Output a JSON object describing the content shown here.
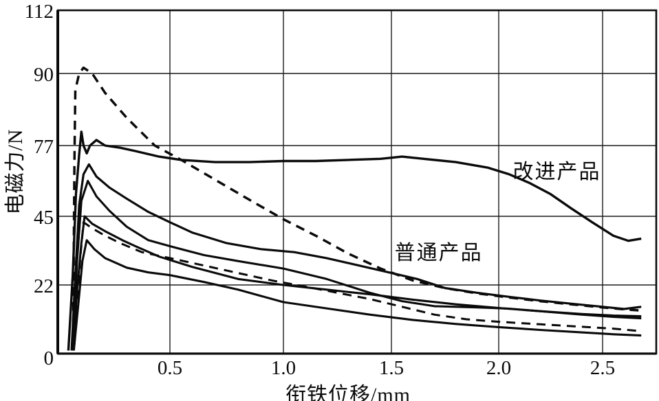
{
  "figure": {
    "background": "#ffffff",
    "ink_color": "#0a0a0a",
    "grid_color": "#1a1a1a"
  },
  "chart_data": {
    "type": "line",
    "title": "",
    "xlabel": "衔铁位移/mm",
    "ylabel": "电磁力/N",
    "xlim": [
      0,
      2.75
    ],
    "ylim": [
      0,
      112
    ],
    "grid": true,
    "legend_position": "none",
    "x_tick_labels": [
      "0.5",
      "1.0",
      "1.5",
      "2.0",
      "2.5"
    ],
    "x_tick_values": [
      0.5,
      1.0,
      1.5,
      2.0,
      2.5
    ],
    "y_tick_labels": [
      "0",
      "22",
      "45",
      "77",
      "90",
      "112"
    ],
    "y_tick_values": [
      0,
      22,
      45,
      77,
      90,
      112
    ],
    "annotations": [
      {
        "text": "改进产品",
        "x": 2.28,
        "y": 66
      },
      {
        "text": "普通产品",
        "x": 1.72,
        "y": 33.5
      }
    ],
    "series": [
      {
        "name": "改进产品",
        "style": "solid",
        "width": 3.4,
        "points": [
          [
            0.03,
            1
          ],
          [
            0.05,
            25
          ],
          [
            0.065,
            55
          ],
          [
            0.08,
            73
          ],
          [
            0.09,
            79.5
          ],
          [
            0.1,
            77
          ],
          [
            0.115,
            73.5
          ],
          [
            0.13,
            77
          ],
          [
            0.16,
            78
          ],
          [
            0.2,
            77
          ],
          [
            0.27,
            76
          ],
          [
            0.34,
            74.5
          ],
          [
            0.45,
            72
          ],
          [
            0.55,
            70.5
          ],
          [
            0.7,
            69.5
          ],
          [
            0.85,
            69.5
          ],
          [
            1.0,
            70
          ],
          [
            1.15,
            70
          ],
          [
            1.3,
            70.5
          ],
          [
            1.45,
            71
          ],
          [
            1.55,
            72
          ],
          [
            1.65,
            71
          ],
          [
            1.8,
            69.5
          ],
          [
            1.95,
            67
          ],
          [
            2.05,
            64
          ],
          [
            2.15,
            60
          ],
          [
            2.25,
            55
          ],
          [
            2.35,
            48.5
          ],
          [
            2.45,
            43
          ],
          [
            2.55,
            38.5
          ],
          [
            2.62,
            36.8
          ],
          [
            2.68,
            37.5
          ]
        ]
      },
      {
        "name": "普通产品 虚线1",
        "style": "dashed",
        "width": 3.5,
        "points": [
          [
            0.052,
            4
          ],
          [
            0.055,
            35
          ],
          [
            0.058,
            70
          ],
          [
            0.062,
            87
          ],
          [
            0.08,
            90
          ],
          [
            0.1,
            92
          ],
          [
            0.14,
            90
          ],
          [
            0.2,
            86.5
          ],
          [
            0.3,
            82
          ],
          [
            0.43,
            77
          ],
          [
            0.55,
            70.5
          ],
          [
            0.7,
            61.5
          ],
          [
            0.85,
            52.5
          ],
          [
            1.0,
            44
          ],
          [
            1.15,
            38.5
          ],
          [
            1.3,
            32.5
          ],
          [
            1.45,
            27.5
          ],
          [
            1.6,
            23.5
          ],
          [
            1.75,
            21
          ],
          [
            1.9,
            19.3
          ],
          [
            2.05,
            18
          ],
          [
            2.2,
            16.8
          ],
          [
            2.35,
            15.8
          ],
          [
            2.5,
            14.8
          ],
          [
            2.6,
            14.2
          ],
          [
            2.68,
            13.8
          ]
        ]
      },
      {
        "name": "普通产品 实线1",
        "style": "solid",
        "width": 3.2,
        "points": [
          [
            0.045,
            1
          ],
          [
            0.06,
            22
          ],
          [
            0.08,
            50
          ],
          [
            0.1,
            64
          ],
          [
            0.125,
            68.5
          ],
          [
            0.16,
            63
          ],
          [
            0.22,
            58
          ],
          [
            0.3,
            53
          ],
          [
            0.4,
            47
          ],
          [
            0.5,
            43
          ],
          [
            0.6,
            39.5
          ],
          [
            0.75,
            36
          ],
          [
            0.9,
            34
          ],
          [
            1.05,
            33
          ],
          [
            1.2,
            31
          ],
          [
            1.35,
            28.5
          ],
          [
            1.5,
            26
          ],
          [
            1.62,
            24
          ],
          [
            1.75,
            21
          ],
          [
            1.9,
            19.5
          ],
          [
            2.05,
            18.2
          ],
          [
            2.2,
            17
          ],
          [
            2.35,
            16
          ],
          [
            2.5,
            15
          ],
          [
            2.6,
            14.3
          ],
          [
            2.68,
            15
          ]
        ]
      },
      {
        "name": "普通产品 实线2",
        "style": "solid",
        "width": 3.1,
        "points": [
          [
            0.05,
            1
          ],
          [
            0.07,
            30
          ],
          [
            0.09,
            52
          ],
          [
            0.12,
            61
          ],
          [
            0.16,
            54
          ],
          [
            0.22,
            47.5
          ],
          [
            0.3,
            41.5
          ],
          [
            0.4,
            37
          ],
          [
            0.5,
            35
          ],
          [
            0.65,
            32
          ],
          [
            0.8,
            30
          ],
          [
            1.0,
            27.5
          ],
          [
            1.2,
            24
          ],
          [
            1.4,
            19.5
          ],
          [
            1.55,
            16.8
          ],
          [
            1.7,
            15.2
          ],
          [
            1.9,
            14.8
          ],
          [
            2.05,
            14.4
          ],
          [
            2.2,
            13.6
          ],
          [
            2.4,
            12.5
          ],
          [
            2.55,
            11.8
          ],
          [
            2.68,
            11.3
          ]
        ]
      },
      {
        "name": "普通产品 实线3",
        "style": "solid",
        "width": 3.1,
        "points": [
          [
            0.05,
            1
          ],
          [
            0.07,
            20
          ],
          [
            0.09,
            36
          ],
          [
            0.105,
            45
          ],
          [
            0.14,
            42.5
          ],
          [
            0.2,
            40
          ],
          [
            0.28,
            37
          ],
          [
            0.34,
            35
          ],
          [
            0.45,
            31.5
          ],
          [
            0.6,
            28
          ],
          [
            0.8,
            24
          ],
          [
            1.0,
            22
          ],
          [
            1.2,
            20.5
          ],
          [
            1.4,
            19
          ],
          [
            1.6,
            17.3
          ],
          [
            1.8,
            15.8
          ],
          [
            2.0,
            14.6
          ],
          [
            2.2,
            13.6
          ],
          [
            2.4,
            12.7
          ],
          [
            2.55,
            12.2
          ],
          [
            2.68,
            12
          ]
        ]
      },
      {
        "name": "普通产品 虚线2",
        "style": "dashed",
        "width": 3.0,
        "points": [
          [
            0.058,
            3
          ],
          [
            0.07,
            14
          ],
          [
            0.085,
            31
          ],
          [
            0.1,
            43
          ],
          [
            0.14,
            41
          ],
          [
            0.2,
            38.5
          ],
          [
            0.27,
            36
          ],
          [
            0.37,
            33
          ],
          [
            0.5,
            31
          ],
          [
            0.65,
            28.5
          ],
          [
            0.8,
            26
          ],
          [
            0.95,
            23.5
          ],
          [
            1.1,
            21.5
          ],
          [
            1.25,
            19.5
          ],
          [
            1.4,
            17.5
          ],
          [
            1.55,
            15
          ],
          [
            1.7,
            12.5
          ],
          [
            1.85,
            11
          ],
          [
            2.0,
            10.2
          ],
          [
            2.2,
            9.4
          ],
          [
            2.4,
            8.6
          ],
          [
            2.55,
            8
          ],
          [
            2.68,
            7.2
          ]
        ]
      },
      {
        "name": "普通产品 实线4",
        "style": "solid",
        "width": 3.1,
        "points": [
          [
            0.055,
            1
          ],
          [
            0.075,
            15
          ],
          [
            0.095,
            30
          ],
          [
            0.115,
            37
          ],
          [
            0.15,
            34
          ],
          [
            0.2,
            31
          ],
          [
            0.3,
            27.8
          ],
          [
            0.4,
            26.2
          ],
          [
            0.5,
            25.3
          ],
          [
            0.65,
            23
          ],
          [
            0.8,
            20.5
          ],
          [
            1.0,
            16.5
          ],
          [
            1.2,
            14.5
          ],
          [
            1.4,
            12.5
          ],
          [
            1.6,
            10.8
          ],
          [
            1.8,
            9.5
          ],
          [
            2.0,
            8.5
          ],
          [
            2.2,
            7.6
          ],
          [
            2.4,
            6.8
          ],
          [
            2.55,
            6.2
          ],
          [
            2.68,
            5.8
          ]
        ]
      }
    ]
  }
}
